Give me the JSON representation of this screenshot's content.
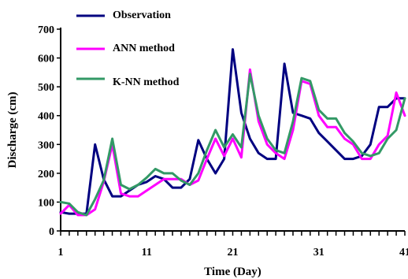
{
  "chart_data": {
    "type": "line",
    "title": "",
    "xlabel": "Time (Day)",
    "ylabel": "Discharge (cm)",
    "xlim": [
      1,
      41
    ],
    "ylim": [
      0,
      700
    ],
    "xticks": [
      1,
      11,
      21,
      31,
      41
    ],
    "yticks": [
      0,
      100,
      200,
      300,
      400,
      500,
      600,
      700
    ],
    "x_minor_step": 1,
    "grid": false,
    "legend_position": "top-left",
    "x": [
      1,
      2,
      3,
      4,
      5,
      6,
      7,
      8,
      9,
      10,
      11,
      12,
      13,
      14,
      15,
      16,
      17,
      18,
      19,
      20,
      21,
      22,
      23,
      24,
      25,
      26,
      27,
      28,
      29,
      30,
      31,
      32,
      33,
      34,
      35,
      36,
      37,
      38,
      39,
      40,
      41
    ],
    "series": [
      {
        "name": "Observation",
        "color": "#000080",
        "values": [
          65,
          60,
          60,
          60,
          300,
          180,
          120,
          120,
          140,
          160,
          170,
          190,
          180,
          150,
          150,
          180,
          315,
          250,
          200,
          250,
          630,
          410,
          320,
          270,
          250,
          250,
          580,
          410,
          400,
          390,
          340,
          310,
          280,
          250,
          250,
          260,
          300,
          430,
          430,
          460,
          460
        ]
      },
      {
        "name": "ANN method",
        "color": "#ff00ff",
        "values": [
          60,
          90,
          55,
          55,
          75,
          170,
          300,
          130,
          120,
          120,
          140,
          160,
          180,
          180,
          180,
          160,
          175,
          250,
          320,
          260,
          320,
          255,
          560,
          380,
          300,
          270,
          250,
          350,
          520,
          510,
          400,
          360,
          360,
          320,
          300,
          250,
          250,
          300,
          330,
          480,
          400
        ]
      },
      {
        "name": "K-NN method",
        "color": "#339966",
        "values": [
          100,
          95,
          65,
          55,
          110,
          175,
          320,
          160,
          145,
          160,
          185,
          215,
          200,
          200,
          175,
          160,
          200,
          280,
          350,
          290,
          335,
          290,
          545,
          400,
          320,
          280,
          270,
          380,
          530,
          520,
          420,
          390,
          390,
          340,
          310,
          270,
          260,
          270,
          320,
          350,
          460
        ]
      }
    ]
  }
}
